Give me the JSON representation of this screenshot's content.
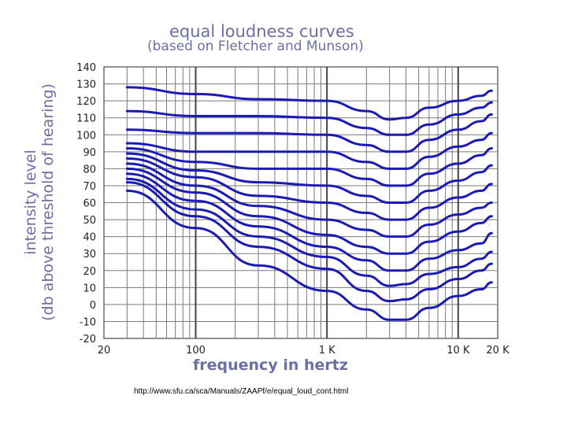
{
  "chart_data": {
    "type": "line",
    "title": "equal loudness curves",
    "subtitle": "(based on Fletcher and Munson)",
    "xlabel": "frequency in hertz",
    "ylabel_line1": "intensity level",
    "ylabel_line2": "(db above threshold of hearing)",
    "x_scale": "log",
    "xlim": [
      20,
      20000
    ],
    "ylim": [
      -20,
      140
    ],
    "y_ticks": [
      140,
      130,
      120,
      110,
      100,
      90,
      80,
      70,
      60,
      50,
      40,
      30,
      20,
      10,
      0,
      -10,
      -20
    ],
    "x_ticks": [
      {
        "value": 20,
        "label": "20"
      },
      {
        "value": 100,
        "label": "100"
      },
      {
        "value": 1000,
        "label": "1 K"
      },
      {
        "value": 10000,
        "label": "10 K"
      },
      {
        "value": 20000,
        "label": "20 K"
      }
    ],
    "grid": true,
    "line_color": "#1a1ab5",
    "series": [
      {
        "x": [
          30,
          100,
          300,
          1000,
          2000,
          3000,
          4000,
          6000,
          10000,
          15000,
          18000
        ],
        "values": [
          128,
          124,
          121,
          120,
          114,
          109,
          110,
          116,
          120,
          123,
          126
        ]
      },
      {
        "x": [
          30,
          100,
          300,
          1000,
          2000,
          3000,
          4000,
          6000,
          10000,
          15000,
          18000
        ],
        "values": [
          114,
          111,
          111,
          110,
          104,
          100,
          100,
          106,
          112,
          116,
          119
        ]
      },
      {
        "x": [
          30,
          100,
          300,
          1000,
          2000,
          3000,
          4000,
          6000,
          10000,
          15000,
          18000
        ],
        "values": [
          103,
          101,
          101,
          100,
          94,
          90,
          90,
          97,
          103,
          108,
          112
        ]
      },
      {
        "x": [
          30,
          100,
          300,
          1000,
          2000,
          3000,
          4000,
          6000,
          10000,
          15000,
          18000
        ],
        "values": [
          95,
          90,
          90,
          90,
          84,
          80,
          80,
          87,
          93,
          97,
          101
        ]
      },
      {
        "x": [
          30,
          100,
          300,
          1000,
          2000,
          3000,
          4000,
          6000,
          10000,
          15000,
          18000
        ],
        "values": [
          92,
          84,
          80,
          80,
          74,
          70,
          70,
          77,
          83,
          88,
          92
        ]
      },
      {
        "x": [
          30,
          100,
          300,
          1000,
          2000,
          3000,
          4000,
          6000,
          10000,
          15000,
          18000
        ],
        "values": [
          89,
          79,
          72,
          70,
          64,
          60,
          60,
          67,
          73,
          78,
          82
        ]
      },
      {
        "x": [
          30,
          100,
          300,
          1000,
          2000,
          3000,
          4000,
          6000,
          10000,
          15000,
          18000
        ],
        "values": [
          86,
          75,
          64,
          60,
          54,
          50,
          50,
          57,
          63,
          67,
          71
        ]
      },
      {
        "x": [
          30,
          100,
          300,
          1000,
          2000,
          3000,
          4000,
          6000,
          10000,
          15000,
          18000
        ],
        "values": [
          83,
          70,
          58,
          50,
          44,
          40,
          40,
          47,
          53,
          57,
          60
        ]
      },
      {
        "x": [
          30,
          100,
          300,
          1000,
          2000,
          3000,
          4000,
          6000,
          10000,
          15000,
          18000
        ],
        "values": [
          80,
          66,
          52,
          41,
          34,
          30,
          30,
          37,
          43,
          48,
          52
        ]
      },
      {
        "x": [
          30,
          100,
          300,
          1000,
          2000,
          3000,
          4000,
          6000,
          10000,
          15000,
          18000
        ],
        "values": [
          77,
          61,
          46,
          34,
          26,
          20,
          20,
          27,
          32,
          36,
          42
        ]
      },
      {
        "x": [
          30,
          100,
          300,
          1000,
          2000,
          3000,
          4000,
          6000,
          10000,
          15000,
          18000
        ],
        "values": [
          74,
          56,
          40,
          28,
          17,
          11,
          12,
          18,
          22,
          27,
          31
        ]
      },
      {
        "x": [
          30,
          100,
          300,
          1000,
          2000,
          3000,
          4000,
          6000,
          10000,
          15000,
          18000
        ],
        "values": [
          72,
          52,
          34,
          21,
          8,
          2,
          3,
          9,
          15,
          20,
          24
        ]
      },
      {
        "x": [
          30,
          100,
          300,
          1000,
          2000,
          3000,
          4000,
          6000,
          10000,
          15000,
          18000
        ],
        "values": [
          67,
          45,
          23,
          8,
          -3,
          -9,
          -9,
          -2,
          5,
          9,
          13
        ]
      }
    ]
  },
  "source_url": "http://www.sfu.ca/sca/Manuals/ZAAPf/e/equal_loud_cont.html"
}
